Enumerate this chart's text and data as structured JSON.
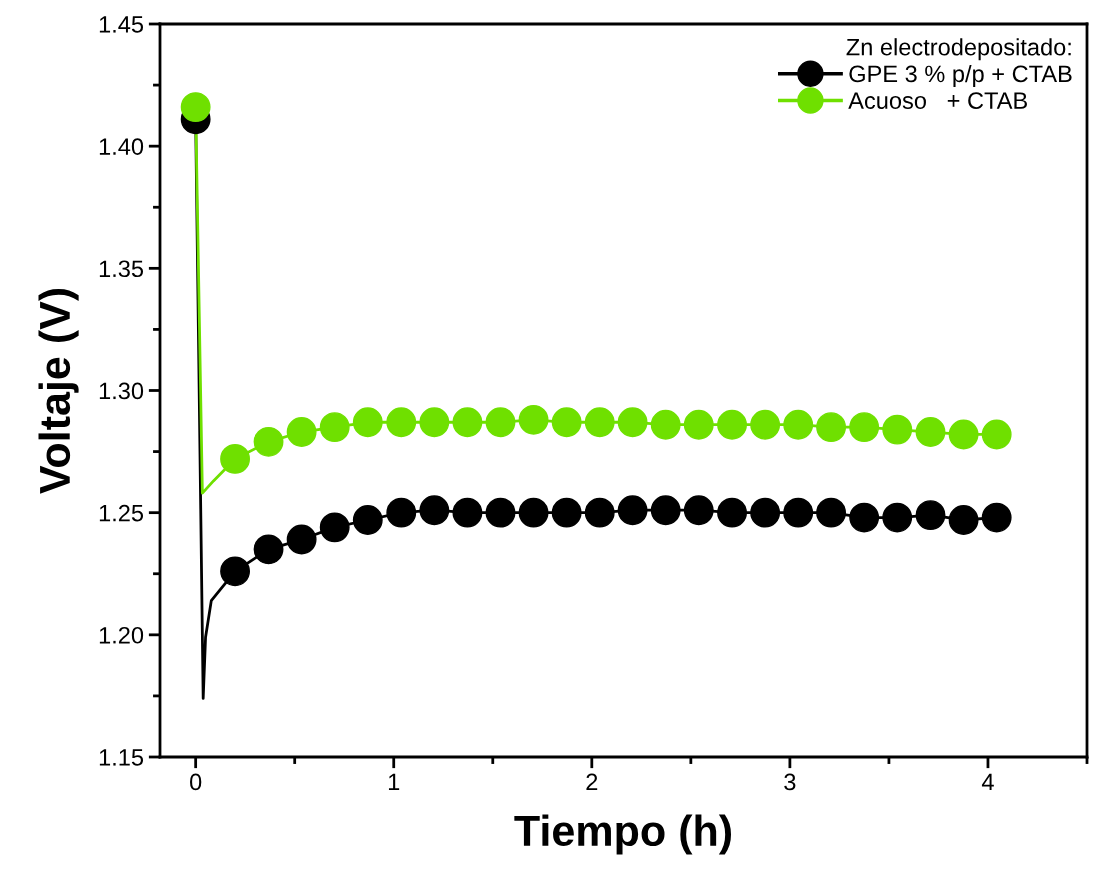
{
  "chart_data": {
    "type": "line",
    "xlabel": "Tiempo (h)",
    "ylabel": "Voltaje (V)",
    "legend_title": "Zn electrodepositado:",
    "xlim": [
      -0.18,
      4.5
    ],
    "ylim": [
      1.15,
      1.45
    ],
    "xticks": [
      0,
      1,
      2,
      3,
      4
    ],
    "yticks": [
      {
        "value": 1.15,
        "label": "1.15"
      },
      {
        "value": 1.2,
        "label": "1.20"
      },
      {
        "value": 1.25,
        "label": "1.25"
      },
      {
        "value": 1.3,
        "label": "1.30"
      },
      {
        "value": 1.35,
        "label": "1.35"
      },
      {
        "value": 1.4,
        "label": "1.40"
      },
      {
        "value": 1.45,
        "label": "1.45"
      }
    ],
    "legend": "top right",
    "grid": false,
    "series": [
      {
        "color": "#000000",
        "marker": "none",
        "x": [
          0,
          0.038,
          0.05,
          0.079,
          0.199,
          0.368,
          0.535,
          0.702,
          0.869,
          1.038,
          1.205,
          1.372,
          1.539,
          1.706,
          1.873,
          2.04,
          2.206,
          2.373,
          2.54,
          2.708,
          2.875,
          3.042,
          3.208,
          3.375,
          3.542,
          3.71,
          3.877,
          4.044
        ],
        "values": [
          1.411,
          1.174,
          1.199,
          1.214,
          1.226,
          1.235,
          1.239,
          1.244,
          1.247,
          1.25,
          1.251,
          1.25,
          1.25,
          1.25,
          1.25,
          1.25,
          1.251,
          1.251,
          1.251,
          1.25,
          1.25,
          1.25,
          1.25,
          1.248,
          1.248,
          1.249,
          1.247,
          1.248
        ]
      },
      {
        "type": "scatter",
        "name": "GPE 3 % p/p + CTAB",
        "color": "#000000",
        "marker": "circle",
        "x": [
          0,
          0.199,
          0.368,
          0.535,
          0.702,
          0.869,
          1.038,
          1.205,
          1.372,
          1.539,
          1.706,
          1.873,
          2.04,
          2.206,
          2.373,
          2.54,
          2.708,
          2.875,
          3.042,
          3.208,
          3.375,
          3.542,
          3.71,
          3.877,
          4.044
        ],
        "values": [
          1.411,
          1.226,
          1.235,
          1.239,
          1.244,
          1.247,
          1.25,
          1.251,
          1.25,
          1.25,
          1.25,
          1.25,
          1.25,
          1.251,
          1.251,
          1.251,
          1.25,
          1.25,
          1.25,
          1.25,
          1.248,
          1.248,
          1.249,
          1.247,
          1.248
        ]
      },
      {
        "color": "#6fe000",
        "marker": "none",
        "x": [
          0,
          0.034,
          0.09,
          0.199,
          0.368,
          0.535,
          0.702,
          0.869,
          1.038,
          1.205,
          1.372,
          1.539,
          1.706,
          1.873,
          2.04,
          2.206,
          2.373,
          2.54,
          2.708,
          2.875,
          3.042,
          3.208,
          3.375,
          3.542,
          3.71,
          3.877,
          4.044
        ],
        "values": [
          1.416,
          1.258,
          1.263,
          1.272,
          1.279,
          1.283,
          1.285,
          1.287,
          1.287,
          1.287,
          1.287,
          1.287,
          1.288,
          1.287,
          1.287,
          1.287,
          1.286,
          1.286,
          1.286,
          1.286,
          1.286,
          1.285,
          1.285,
          1.284,
          1.283,
          1.282,
          1.282
        ]
      },
      {
        "type": "scatter",
        "name": "Acuoso   + CTAB",
        "color": "#6fe000",
        "marker": "circle",
        "x": [
          0,
          0.199,
          0.368,
          0.535,
          0.702,
          0.869,
          1.038,
          1.205,
          1.372,
          1.539,
          1.706,
          1.873,
          2.04,
          2.206,
          2.373,
          2.54,
          2.708,
          2.875,
          3.042,
          3.208,
          3.375,
          3.542,
          3.71,
          3.877,
          4.044
        ],
        "values": [
          1.416,
          1.272,
          1.279,
          1.283,
          1.285,
          1.287,
          1.287,
          1.287,
          1.287,
          1.287,
          1.288,
          1.287,
          1.287,
          1.287,
          1.286,
          1.286,
          1.286,
          1.286,
          1.286,
          1.285,
          1.285,
          1.284,
          1.283,
          1.282,
          1.282
        ]
      }
    ]
  }
}
